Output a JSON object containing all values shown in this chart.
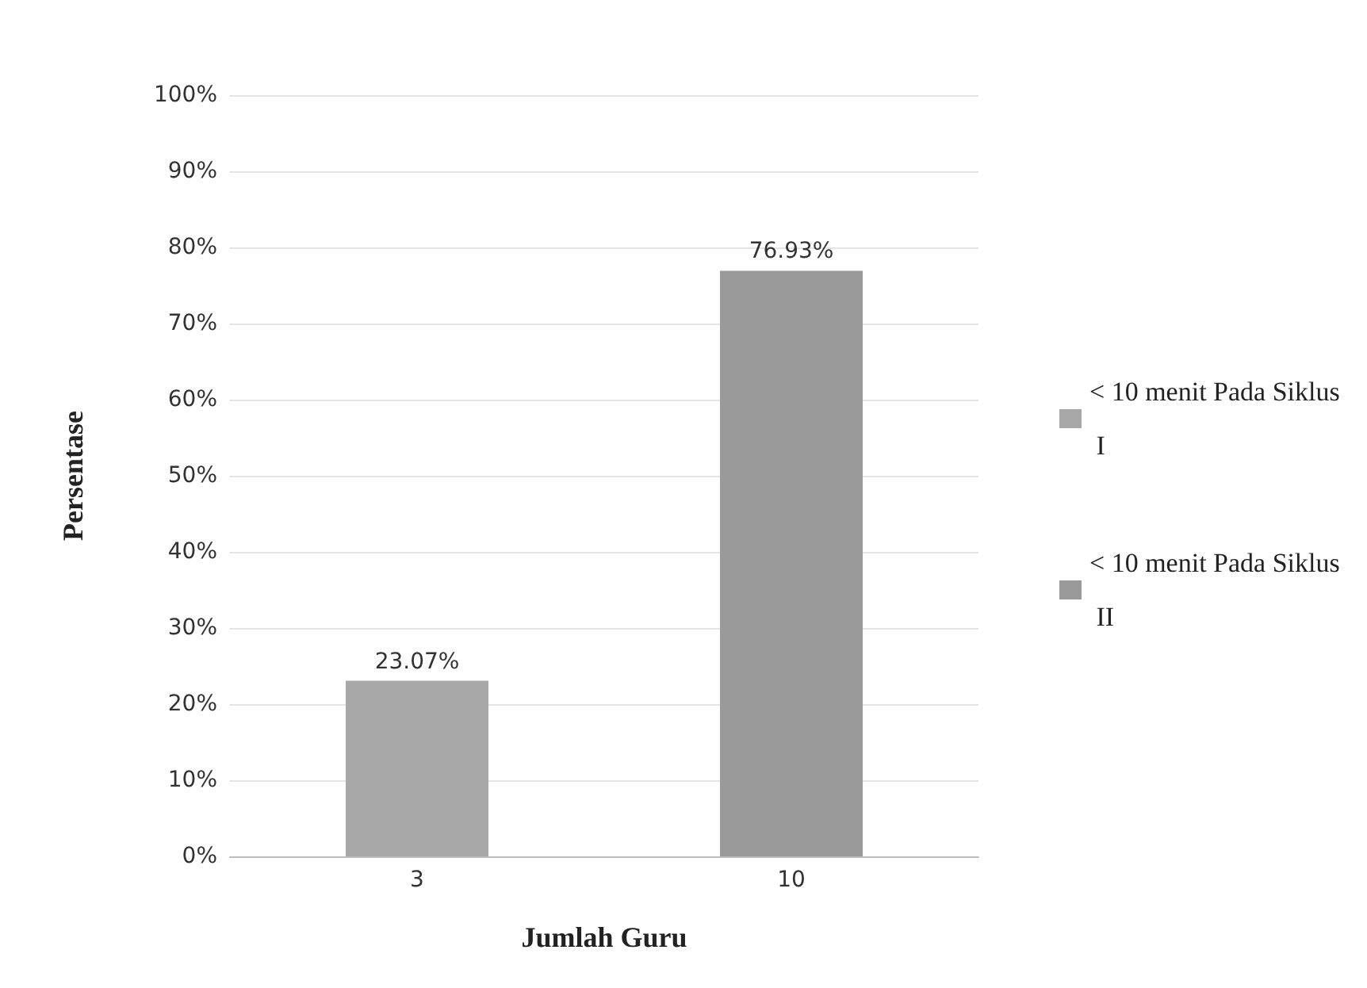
{
  "chart_data": {
    "type": "bar",
    "xlabel": "Jumlah Guru",
    "ylabel": "Persentase",
    "categories": [
      "3",
      "10"
    ],
    "series": [
      {
        "name": "< 10 menit Pada Siklus I",
        "color": "#a8a8a8",
        "values": [
          23.07,
          null
        ],
        "value_labels": [
          "23.07%",
          null
        ]
      },
      {
        "name": "< 10 menit Pada Siklus II",
        "color": "#9a9a9a",
        "values": [
          null,
          76.93
        ],
        "value_labels": [
          null,
          "76.93%"
        ]
      }
    ],
    "ylim": [
      0,
      100
    ],
    "yticks": [
      {
        "value": 0,
        "label": "0%"
      },
      {
        "value": 10,
        "label": "10%"
      },
      {
        "value": 20,
        "label": "20%"
      },
      {
        "value": 30,
        "label": "30%"
      },
      {
        "value": 40,
        "label": "40%"
      },
      {
        "value": 50,
        "label": "50%"
      },
      {
        "value": 60,
        "label": "60%"
      },
      {
        "value": 70,
        "label": "70%"
      },
      {
        "value": 80,
        "label": "80%"
      },
      {
        "value": 90,
        "label": "90%"
      },
      {
        "value": 100,
        "label": "100%"
      }
    ],
    "grid": "y",
    "legend": "right"
  }
}
